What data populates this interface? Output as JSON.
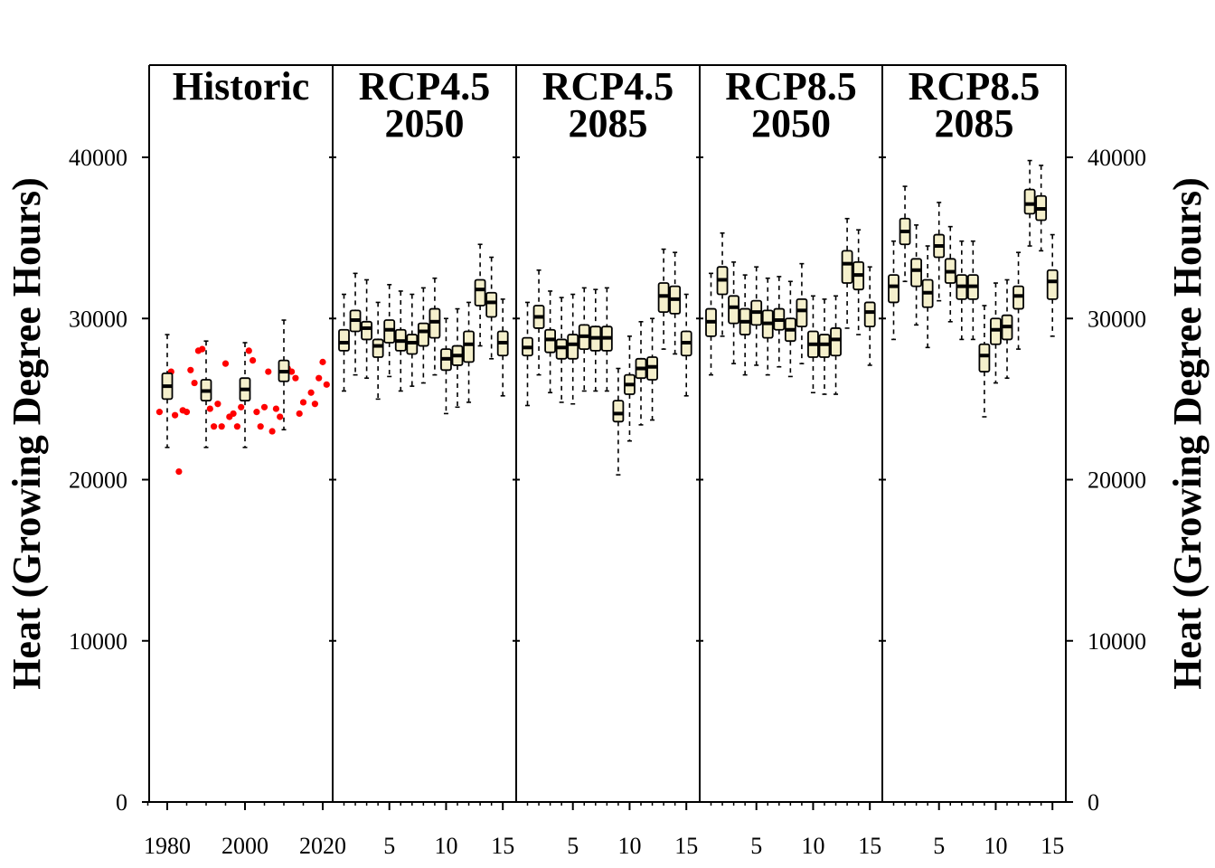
{
  "chart_data": {
    "type": "box",
    "ylabel_left": "Heat (Growing Degree Hours)",
    "ylabel_right": "Heat (Growing Degree Hours)",
    "ylim": [
      0,
      45000
    ],
    "yticks": [
      0,
      10000,
      20000,
      30000,
      40000
    ],
    "ytick_labels": [
      "0",
      "10000",
      "20000",
      "30000",
      "40000"
    ],
    "colors": {
      "box_fill": "#f5f0cc",
      "points": "#ff0000",
      "ink": "#000000"
    },
    "panels": [
      {
        "title": [
          "Historic"
        ],
        "x_ticks": [
          1980,
          2000,
          2020
        ],
        "x_tick_labels": [
          "1980",
          "2000",
          "2020"
        ],
        "points": [
          [
            1978,
            24200
          ],
          [
            1980,
            25300
          ],
          [
            1981,
            26700
          ],
          [
            1982,
            24000
          ],
          [
            1983,
            20500
          ],
          [
            1984,
            24300
          ],
          [
            1985,
            24200
          ],
          [
            1986,
            26800
          ],
          [
            1987,
            26000
          ],
          [
            1988,
            28000
          ],
          [
            1989,
            28100
          ],
          [
            1990,
            25400
          ],
          [
            1991,
            24400
          ],
          [
            1992,
            23300
          ],
          [
            1993,
            24700
          ],
          [
            1994,
            23300
          ],
          [
            1995,
            27200
          ],
          [
            1996,
            23900
          ],
          [
            1997,
            24100
          ],
          [
            1998,
            23300
          ],
          [
            1999,
            24500
          ],
          [
            2000,
            25100
          ],
          [
            2001,
            28000
          ],
          [
            2002,
            27400
          ],
          [
            2003,
            24200
          ],
          [
            2004,
            23300
          ],
          [
            2005,
            24500
          ],
          [
            2006,
            26700
          ],
          [
            2007,
            23000
          ],
          [
            2008,
            24400
          ],
          [
            2009,
            23900
          ],
          [
            2010,
            26800
          ],
          [
            2011,
            26900
          ],
          [
            2012,
            26700
          ],
          [
            2013,
            26300
          ],
          [
            2014,
            24100
          ],
          [
            2015,
            24800
          ],
          [
            2017,
            25400
          ],
          [
            2018,
            24700
          ],
          [
            2019,
            26300
          ],
          [
            2020,
            27300
          ],
          [
            2021,
            25900
          ]
        ],
        "boxes": [
          {
            "year": 1980,
            "stats": [
              22000,
              25000,
              25800,
              26600,
              29000
            ]
          },
          {
            "year": 1990,
            "stats": [
              22000,
              24900,
              25500,
              26200,
              28600
            ]
          },
          {
            "year": 2000,
            "stats": [
              22000,
              24900,
              25600,
              26300,
              28500
            ]
          },
          {
            "year": 2010,
            "stats": [
              23100,
              26100,
              26700,
              27400,
              29900
            ]
          }
        ]
      },
      {
        "title": [
          "RCP4.5",
          "2050"
        ],
        "x_tick_labels": [
          "5",
          "10",
          "15"
        ],
        "boxes": [
          [
            25500,
            28000,
            28500,
            29300,
            31500
          ],
          [
            26500,
            29200,
            29900,
            30500,
            32800
          ],
          [
            26300,
            28700,
            29400,
            29800,
            32400
          ],
          [
            25000,
            27600,
            28300,
            28700,
            31000
          ],
          [
            26400,
            28500,
            29300,
            29900,
            32100
          ],
          [
            25500,
            28000,
            28600,
            29300,
            31700
          ],
          [
            25800,
            27800,
            28500,
            29000,
            31500
          ],
          [
            26000,
            28300,
            29200,
            29700,
            31900
          ],
          [
            26500,
            28800,
            29800,
            30600,
            32500
          ],
          [
            24100,
            26800,
            27500,
            28100,
            30000
          ],
          [
            24500,
            27100,
            27700,
            28300,
            30600
          ],
          [
            24800,
            27300,
            28400,
            29200,
            31000
          ],
          [
            28300,
            30800,
            31800,
            32400,
            34600
          ],
          [
            27500,
            30100,
            31000,
            31600,
            33800
          ],
          [
            25200,
            27700,
            28500,
            29200,
            31200
          ]
        ]
      },
      {
        "title": [
          "RCP4.5",
          "2085"
        ],
        "x_tick_labels": [
          "5",
          "10",
          "15"
        ],
        "boxes": [
          [
            24600,
            27700,
            28200,
            28800,
            31000
          ],
          [
            26500,
            29400,
            30100,
            30800,
            33000
          ],
          [
            25400,
            27900,
            28700,
            29300,
            31700
          ],
          [
            24800,
            27500,
            28200,
            28700,
            31300
          ],
          [
            24700,
            27500,
            28400,
            29000,
            31500
          ],
          [
            25500,
            28100,
            28900,
            29600,
            31900
          ],
          [
            25500,
            28000,
            28800,
            29500,
            31800
          ],
          [
            25500,
            28000,
            28800,
            29500,
            31900
          ],
          [
            20300,
            23600,
            24100,
            24900,
            26900
          ],
          [
            22400,
            25300,
            25900,
            26500,
            28900
          ],
          [
            23400,
            26300,
            26900,
            27500,
            29800
          ],
          [
            23700,
            26200,
            27000,
            27600,
            30000
          ],
          [
            28100,
            30400,
            31400,
            32200,
            34300
          ],
          [
            27800,
            30300,
            31200,
            32000,
            34100
          ],
          [
            25200,
            27700,
            28500,
            29200,
            31500
          ]
        ]
      },
      {
        "title": [
          "RCP8.5",
          "2050"
        ],
        "x_tick_labels": [
          "5",
          "10",
          "15"
        ],
        "boxes": [
          [
            26500,
            28900,
            29800,
            30600,
            32800
          ],
          [
            28900,
            31500,
            32400,
            33200,
            35300
          ],
          [
            27200,
            29700,
            30700,
            31400,
            33500
          ],
          [
            26500,
            29000,
            29800,
            30600,
            32700
          ],
          [
            27100,
            29600,
            30400,
            31100,
            33200
          ],
          [
            26500,
            28800,
            29700,
            30500,
            32500
          ],
          [
            27000,
            29300,
            29900,
            30600,
            32600
          ],
          [
            26400,
            28600,
            29300,
            30000,
            32300
          ],
          [
            27200,
            29500,
            30500,
            31200,
            33400
          ],
          [
            25400,
            27600,
            28400,
            29200,
            31400
          ],
          [
            25300,
            27600,
            28400,
            29000,
            31200
          ],
          [
            25300,
            27700,
            28700,
            29400,
            31400
          ],
          [
            29400,
            32200,
            33400,
            34200,
            36200
          ],
          [
            29000,
            31800,
            32700,
            33500,
            35500
          ],
          [
            27100,
            29500,
            30400,
            31000,
            33200
          ]
        ]
      },
      {
        "title": [
          "RCP8.5",
          "2085"
        ],
        "x_tick_labels": [
          "5",
          "10",
          "15"
        ],
        "boxes": [
          [
            28700,
            31000,
            32000,
            32700,
            34800
          ],
          [
            32300,
            34600,
            35400,
            36200,
            38200
          ],
          [
            29600,
            32000,
            33000,
            33700,
            35800
          ],
          [
            28200,
            30700,
            31600,
            32400,
            34500
          ],
          [
            31100,
            33800,
            34500,
            35200,
            37200
          ],
          [
            29800,
            32200,
            32900,
            33700,
            35700
          ],
          [
            28700,
            31200,
            32000,
            32700,
            34800
          ],
          [
            28700,
            31200,
            32000,
            32700,
            34800
          ],
          [
            23900,
            26700,
            27700,
            28400,
            30800
          ],
          [
            26000,
            28400,
            29300,
            30000,
            32200
          ],
          [
            26300,
            28700,
            29500,
            30200,
            32400
          ],
          [
            28100,
            30600,
            31400,
            32000,
            34100
          ],
          [
            34500,
            36500,
            37100,
            38000,
            39800
          ],
          [
            34200,
            36100,
            36800,
            37600,
            39500
          ],
          [
            28900,
            31200,
            32300,
            33000,
            35200
          ]
        ]
      }
    ]
  }
}
